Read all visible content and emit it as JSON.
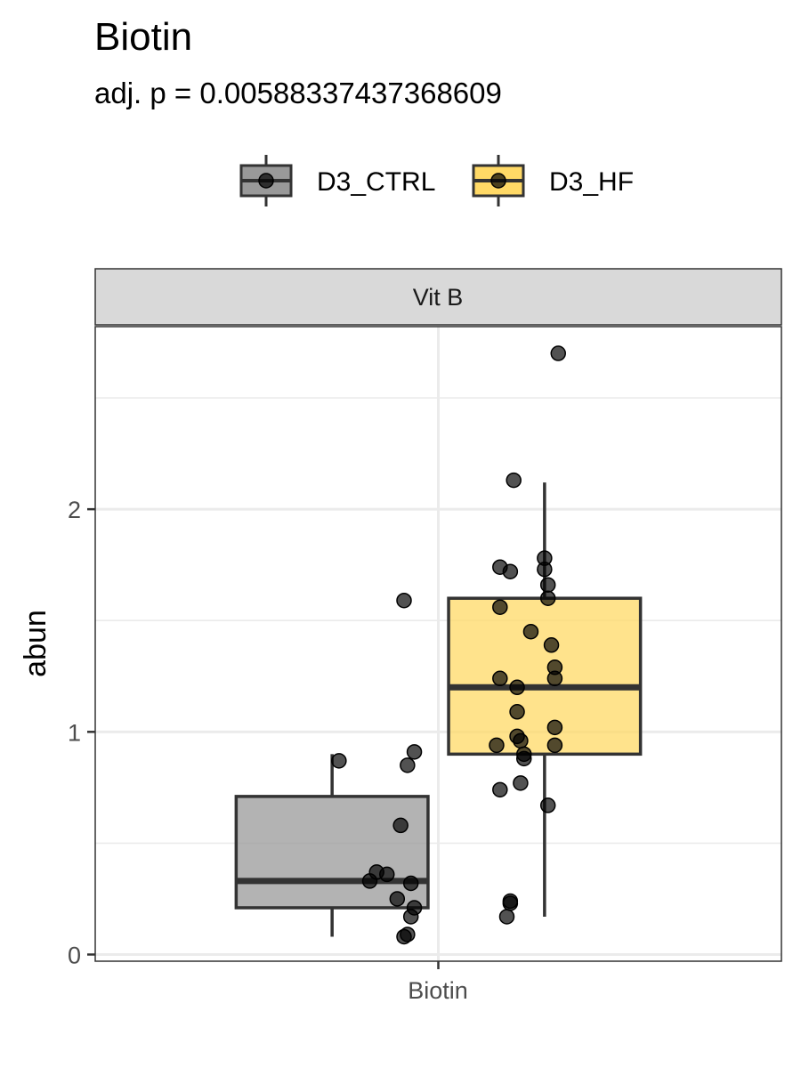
{
  "chart_data": {
    "type": "box",
    "title": "Biotin",
    "subtitle": "adj. p = 0.00588337437368609",
    "ylabel": "abun",
    "xlabel": "",
    "categories": [
      "Biotin"
    ],
    "facet": "Vit B",
    "ylim": [
      -0.03,
      2.82
    ],
    "yticks": [
      0,
      1,
      2
    ],
    "grid": true,
    "legend_position": "top",
    "series": [
      {
        "name": "D3_CTRL",
        "color": "#999999",
        "box": {
          "q1": 0.21,
          "median": 0.33,
          "q3": 0.71,
          "whisker_low": 0.08,
          "whisker_high": 0.9
        },
        "points": [
          {
            "x": -0.1,
            "y": 1.59
          },
          {
            "x": -0.29,
            "y": 0.87
          },
          {
            "x": -0.09,
            "y": 0.85
          },
          {
            "x": -0.07,
            "y": 0.91
          },
          {
            "x": -0.11,
            "y": 0.58
          },
          {
            "x": -0.18,
            "y": 0.37
          },
          {
            "x": -0.15,
            "y": 0.36
          },
          {
            "x": -0.2,
            "y": 0.33
          },
          {
            "x": -0.08,
            "y": 0.32
          },
          {
            "x": -0.12,
            "y": 0.25
          },
          {
            "x": -0.07,
            "y": 0.21
          },
          {
            "x": -0.08,
            "y": 0.17
          },
          {
            "x": -0.09,
            "y": 0.09
          },
          {
            "x": -0.1,
            "y": 0.08
          }
        ]
      },
      {
        "name": "D3_HF",
        "color": "#FFD966",
        "box": {
          "q1": 0.9,
          "median": 1.2,
          "q3": 1.6,
          "whisker_low": 0.17,
          "whisker_high": 2.12
        },
        "points": [
          {
            "x": 0.35,
            "y": 2.7
          },
          {
            "x": 0.22,
            "y": 2.13
          },
          {
            "x": 0.31,
            "y": 1.78
          },
          {
            "x": 0.31,
            "y": 1.73
          },
          {
            "x": 0.18,
            "y": 1.74
          },
          {
            "x": 0.21,
            "y": 1.72
          },
          {
            "x": 0.32,
            "y": 1.66
          },
          {
            "x": 0.32,
            "y": 1.6
          },
          {
            "x": 0.18,
            "y": 1.56
          },
          {
            "x": 0.27,
            "y": 1.45
          },
          {
            "x": 0.33,
            "y": 1.39
          },
          {
            "x": 0.34,
            "y": 1.29
          },
          {
            "x": 0.18,
            "y": 1.24
          },
          {
            "x": 0.34,
            "y": 1.24
          },
          {
            "x": 0.23,
            "y": 1.2
          },
          {
            "x": 0.23,
            "y": 1.09
          },
          {
            "x": 0.34,
            "y": 1.02
          },
          {
            "x": 0.23,
            "y": 0.98
          },
          {
            "x": 0.24,
            "y": 0.96
          },
          {
            "x": 0.17,
            "y": 0.94
          },
          {
            "x": 0.34,
            "y": 0.94
          },
          {
            "x": 0.25,
            "y": 0.9
          },
          {
            "x": 0.25,
            "y": 0.88
          },
          {
            "x": 0.24,
            "y": 0.77
          },
          {
            "x": 0.18,
            "y": 0.74
          },
          {
            "x": 0.32,
            "y": 0.67
          },
          {
            "x": 0.21,
            "y": 0.24
          },
          {
            "x": 0.21,
            "y": 0.23
          },
          {
            "x": 0.2,
            "y": 0.17
          }
        ]
      }
    ]
  }
}
